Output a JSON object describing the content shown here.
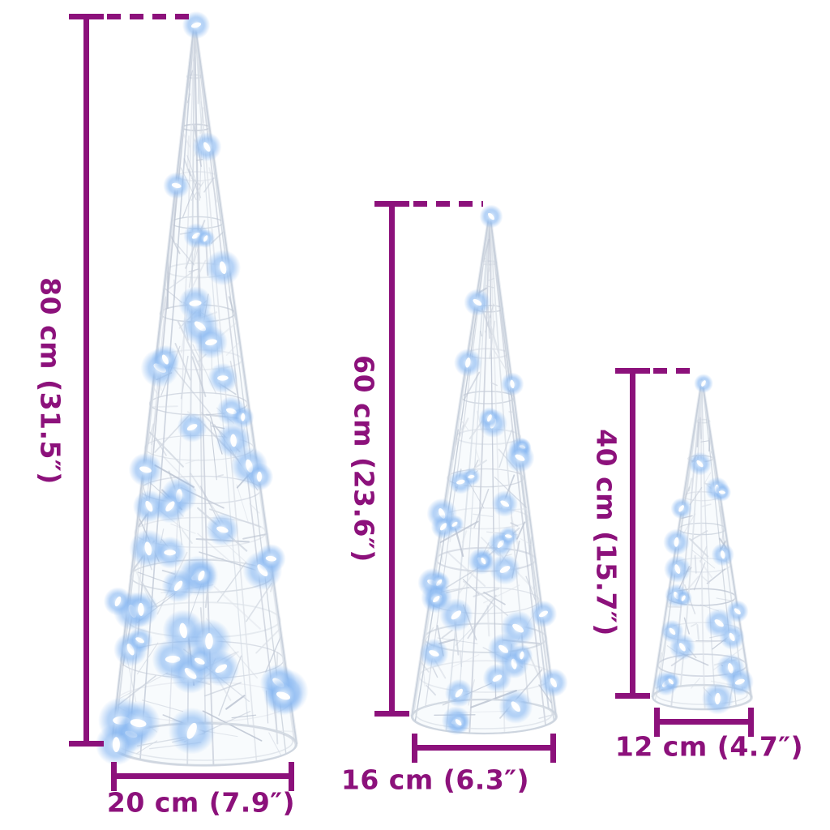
{
  "page": {
    "background_color": "#FFFFFF"
  },
  "diagram": {
    "accent_color": "#8C117B",
    "led": {
      "core_color": "#FFFFFF",
      "mid_color": "#BDD8F8",
      "glow_color": "#86B6F1"
    },
    "wire_colors": [
      "#C6CDD9",
      "#D3D9E2",
      "#BAC2D0",
      "#DDE2E9"
    ],
    "cones": [
      {
        "height_label": "80 cm (31.5″)",
        "width_label": "20 cm (7.9″)"
      },
      {
        "height_label": "60 cm (23.6″)",
        "width_label": "16 cm (6.3″)"
      },
      {
        "height_label": "40 cm (15.7″)",
        "width_label": "12 cm (4.7″)"
      }
    ]
  }
}
